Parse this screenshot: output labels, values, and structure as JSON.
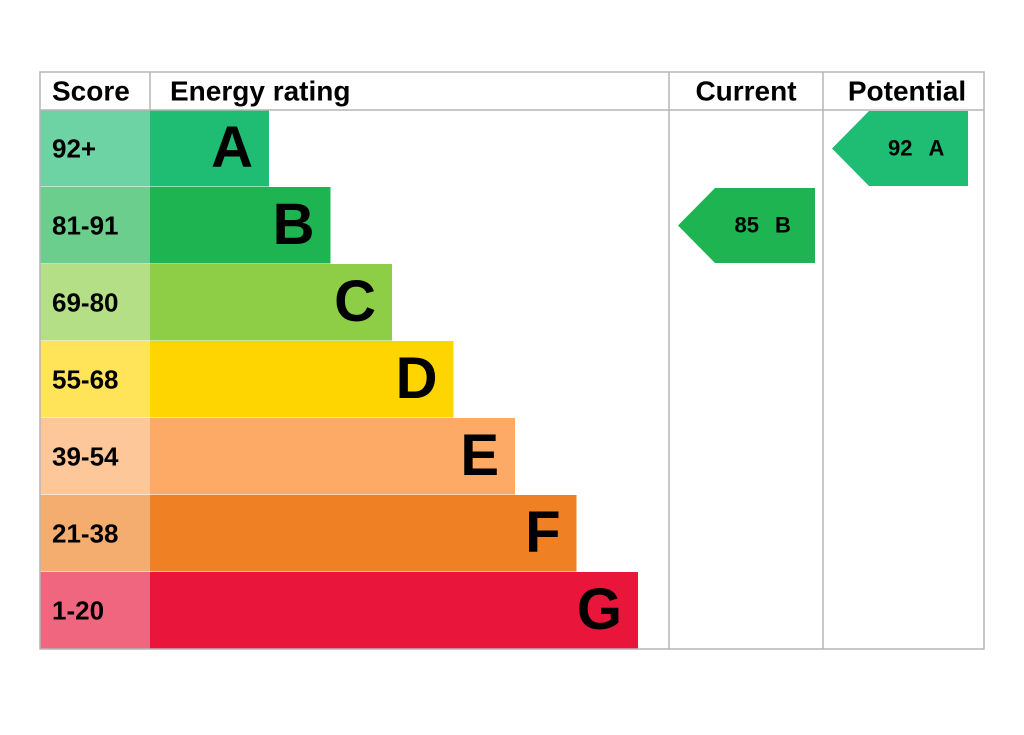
{
  "header": [
    "Score",
    "Energy rating",
    "Current",
    "Potential"
  ],
  "bands": [
    {
      "score": "92+",
      "letter": "A",
      "color": "#1fbc74"
    },
    {
      "score": "81-91",
      "letter": "B",
      "color": "#1db451"
    },
    {
      "score": "69-80",
      "letter": "C",
      "color": "#8dce46"
    },
    {
      "score": "55-68",
      "letter": "D",
      "color": "#ffd500"
    },
    {
      "score": "39-54",
      "letter": "E",
      "color": "#fcaa65"
    },
    {
      "score": "21-38",
      "letter": "F",
      "color": "#ef8023"
    },
    {
      "score": "1-20",
      "letter": "G",
      "color": "#e9153b"
    }
  ],
  "current": {
    "score": "85",
    "band": "B"
  },
  "potential": {
    "score": "92",
    "band": "A"
  }
}
